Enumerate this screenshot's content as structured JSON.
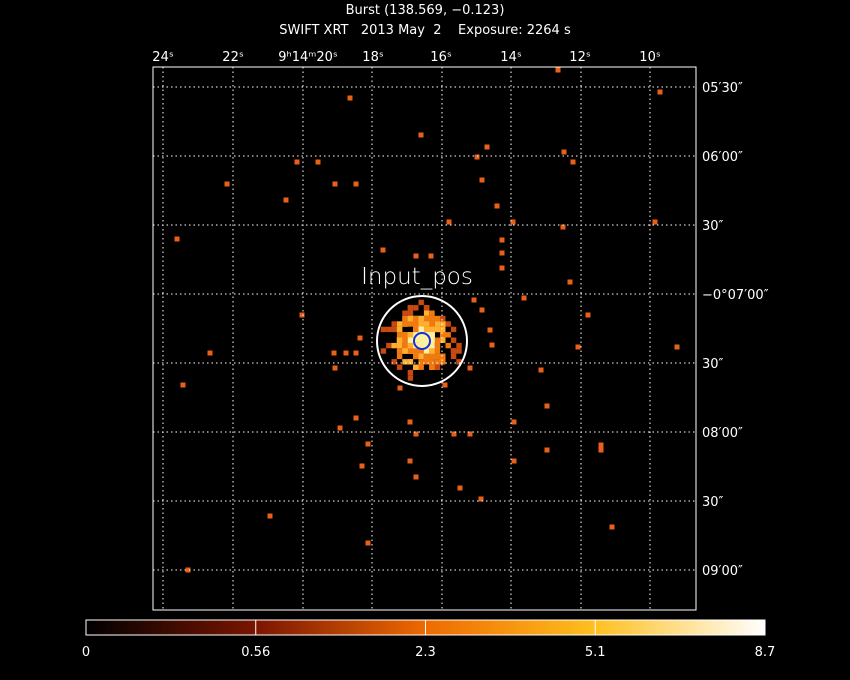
{
  "header": {
    "title": "Burst (138.569, −0.123)",
    "subtitle": "SWIFT XRT   2013 May  2    Exposure: 2264 s"
  },
  "top_axis": {
    "labels": [
      "24ˢ",
      "22ˢ",
      "9ʰ14ᵐ20ˢ",
      "18ˢ",
      "16ˢ",
      "14ˢ",
      "12ˢ",
      "10ˢ"
    ]
  },
  "right_axis": {
    "labels": [
      "05′30″",
      "06′00″",
      "30″",
      "−0°07′00″",
      "30″",
      "08′00″",
      "30″",
      "09′00″"
    ]
  },
  "annotation": "Input_pos",
  "colorbar": {
    "labels": [
      0,
      0.56,
      2.3,
      5.1,
      8.7
    ]
  }
}
